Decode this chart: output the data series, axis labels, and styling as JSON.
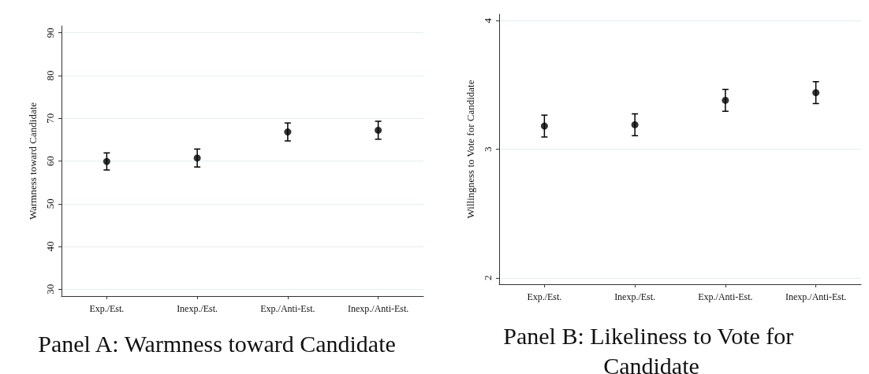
{
  "chart_data": [
    {
      "type": "scatter",
      "title": "Panel A: Warmness toward Candidate",
      "ylabel": "Warmness toward Candidate",
      "categories": [
        "Exp./Est.",
        "Inexp./Est.",
        "Exp./Anti-Est.",
        "Inexp./Anti-Est."
      ],
      "series": [
        {
          "color": "#000000",
          "values": [
            59.9,
            60.7,
            66.8,
            67.2
          ],
          "errors": [
            2.0,
            2.1,
            2.1,
            2.1
          ]
        }
      ],
      "ylim": [
        28.4,
        91.6
      ],
      "yticks": [
        30,
        40,
        50,
        60,
        70,
        80,
        90
      ],
      "grid": "y",
      "marker": "circle"
    },
    {
      "type": "scatter",
      "title": "Panel B: Likeliness to Vote for Candidate",
      "ylabel": "Willingness to Vote for Candidate",
      "categories": [
        "Exp./Est.",
        "Inexp./Est.",
        "Exp./Anti-Est.",
        "Inexp./Anti-Est."
      ],
      "series": [
        {
          "color": "#000000",
          "values": [
            3.18,
            3.19,
            3.38,
            3.44
          ],
          "errors": [
            0.085,
            0.085,
            0.085,
            0.085
          ]
        }
      ],
      "ylim": [
        1.95,
        4.05
      ],
      "yticks": [
        2,
        3,
        4
      ],
      "grid": "y",
      "marker": "circle"
    }
  ]
}
